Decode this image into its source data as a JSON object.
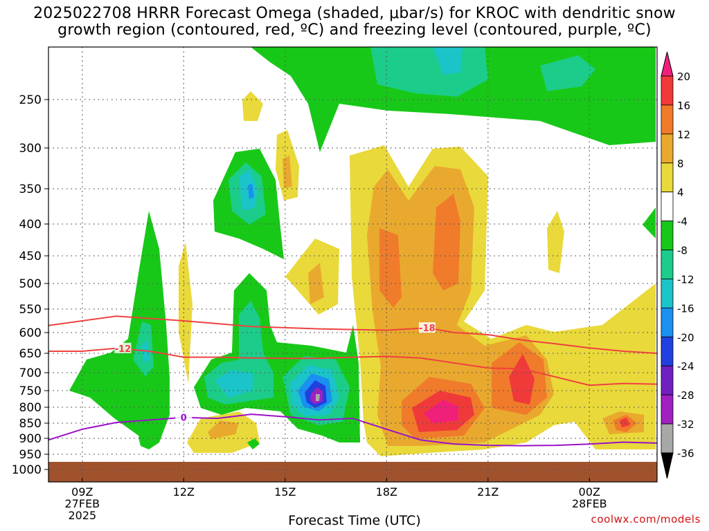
{
  "title_line1": "2025022708 HRRR Forecast Omega (shaded, μbar/s) for KROC with dendritic snow",
  "title_line2": "growth region (contoured, red, ºC) and freezing level (contoured, purple, ºC)",
  "xlabel": "Forecast Time (UTC)",
  "credit": "coolwx.com/models",
  "chart_data": {
    "type": "time-height contour",
    "x_ticks": [
      {
        "label": "09Z",
        "sub1": "27FEB",
        "sub2": "2025",
        "hour": 9
      },
      {
        "label": "12Z",
        "sub1": "",
        "sub2": "",
        "hour": 12
      },
      {
        "label": "15Z",
        "sub1": "",
        "sub2": "",
        "hour": 15
      },
      {
        "label": "18Z",
        "sub1": "",
        "sub2": "",
        "hour": 18
      },
      {
        "label": "21Z",
        "sub1": "",
        "sub2": "",
        "hour": 21
      },
      {
        "label": "00Z",
        "sub1": "28FEB",
        "sub2": "",
        "hour": 24
      }
    ],
    "xlim_hours": [
      8,
      26
    ],
    "y_ticks_hpa": [
      250,
      300,
      350,
      400,
      450,
      500,
      550,
      600,
      650,
      700,
      750,
      800,
      850,
      900,
      950,
      1000
    ],
    "ylim_hpa": [
      200,
      1025
    ],
    "grid": true,
    "colorbar_labels": [
      "20",
      "16",
      "12",
      "8",
      "4",
      "-4",
      "-8",
      "-12",
      "-16",
      "-20",
      "-24",
      "-28",
      "-32",
      "-36"
    ],
    "colorbar_colors": [
      "#f0207a",
      "#f03a3a",
      "#f07b2a",
      "#e9a92e",
      "#e9d93a",
      "#ffffff",
      "#18c818",
      "#1ccc8a",
      "#1ac4c8",
      "#1a90f0",
      "#2040e0",
      "#7020c0",
      "#a020c0",
      "#a8a8a8",
      "#000000"
    ],
    "omega_colors": {
      "green": "#18c818",
      "teal": "#1ccc8a",
      "cyan": "#1ac4c8",
      "blue": "#1a90f0",
      "dkblue": "#2040e0",
      "purple": "#7020c0",
      "yellow": "#e9d93a",
      "gold": "#e9a92e",
      "orange": "#f07b2a",
      "red": "#f03a3a",
      "magenta": "#f0207a",
      "grey": "#a8a8a8"
    },
    "terrain_color": "#a0522d",
    "red_contour_color": "#f04040",
    "purple_contour_color": "#9a10c8",
    "contours": [
      {
        "name": "-18",
        "color": "red",
        "label": "-18",
        "label_hour": 19.2,
        "points": [
          [
            8,
            585
          ],
          [
            10,
            565
          ],
          [
            12,
            575
          ],
          [
            14,
            587
          ],
          [
            16,
            592
          ],
          [
            18,
            595
          ],
          [
            19.2,
            590
          ],
          [
            20,
            600
          ],
          [
            21,
            605
          ],
          [
            22,
            618
          ],
          [
            23,
            627
          ],
          [
            24,
            637
          ],
          [
            25,
            645
          ],
          [
            26,
            650
          ]
        ]
      },
      {
        "name": "-12",
        "color": "red",
        "label": "-12",
        "label_hour": 10.2,
        "points": [
          [
            8,
            645
          ],
          [
            9,
            645
          ],
          [
            10,
            638
          ],
          [
            11,
            645
          ],
          [
            12,
            660
          ],
          [
            13,
            660
          ],
          [
            14,
            662
          ],
          [
            15,
            663
          ],
          [
            16,
            663
          ],
          [
            17,
            660
          ],
          [
            18,
            658
          ],
          [
            19,
            662
          ],
          [
            20,
            675
          ],
          [
            21,
            688
          ],
          [
            22,
            690
          ],
          [
            23,
            712
          ],
          [
            24,
            735
          ],
          [
            25,
            730
          ],
          [
            26,
            732
          ]
        ]
      },
      {
        "name": "0",
        "color": "purple",
        "label": "0",
        "label_hour": 12,
        "points": [
          [
            8,
            905
          ],
          [
            9,
            870
          ],
          [
            10,
            848
          ],
          [
            11,
            840
          ],
          [
            12,
            832
          ],
          [
            13,
            835
          ],
          [
            14,
            822
          ],
          [
            15,
            830
          ],
          [
            16,
            840
          ],
          [
            17,
            835
          ],
          [
            18,
            870
          ],
          [
            19,
            905
          ],
          [
            20,
            918
          ],
          [
            21,
            922
          ],
          [
            22,
            923
          ],
          [
            23,
            922
          ],
          [
            24,
            918
          ],
          [
            25,
            912
          ],
          [
            26,
            915
          ]
        ]
      }
    ]
  }
}
